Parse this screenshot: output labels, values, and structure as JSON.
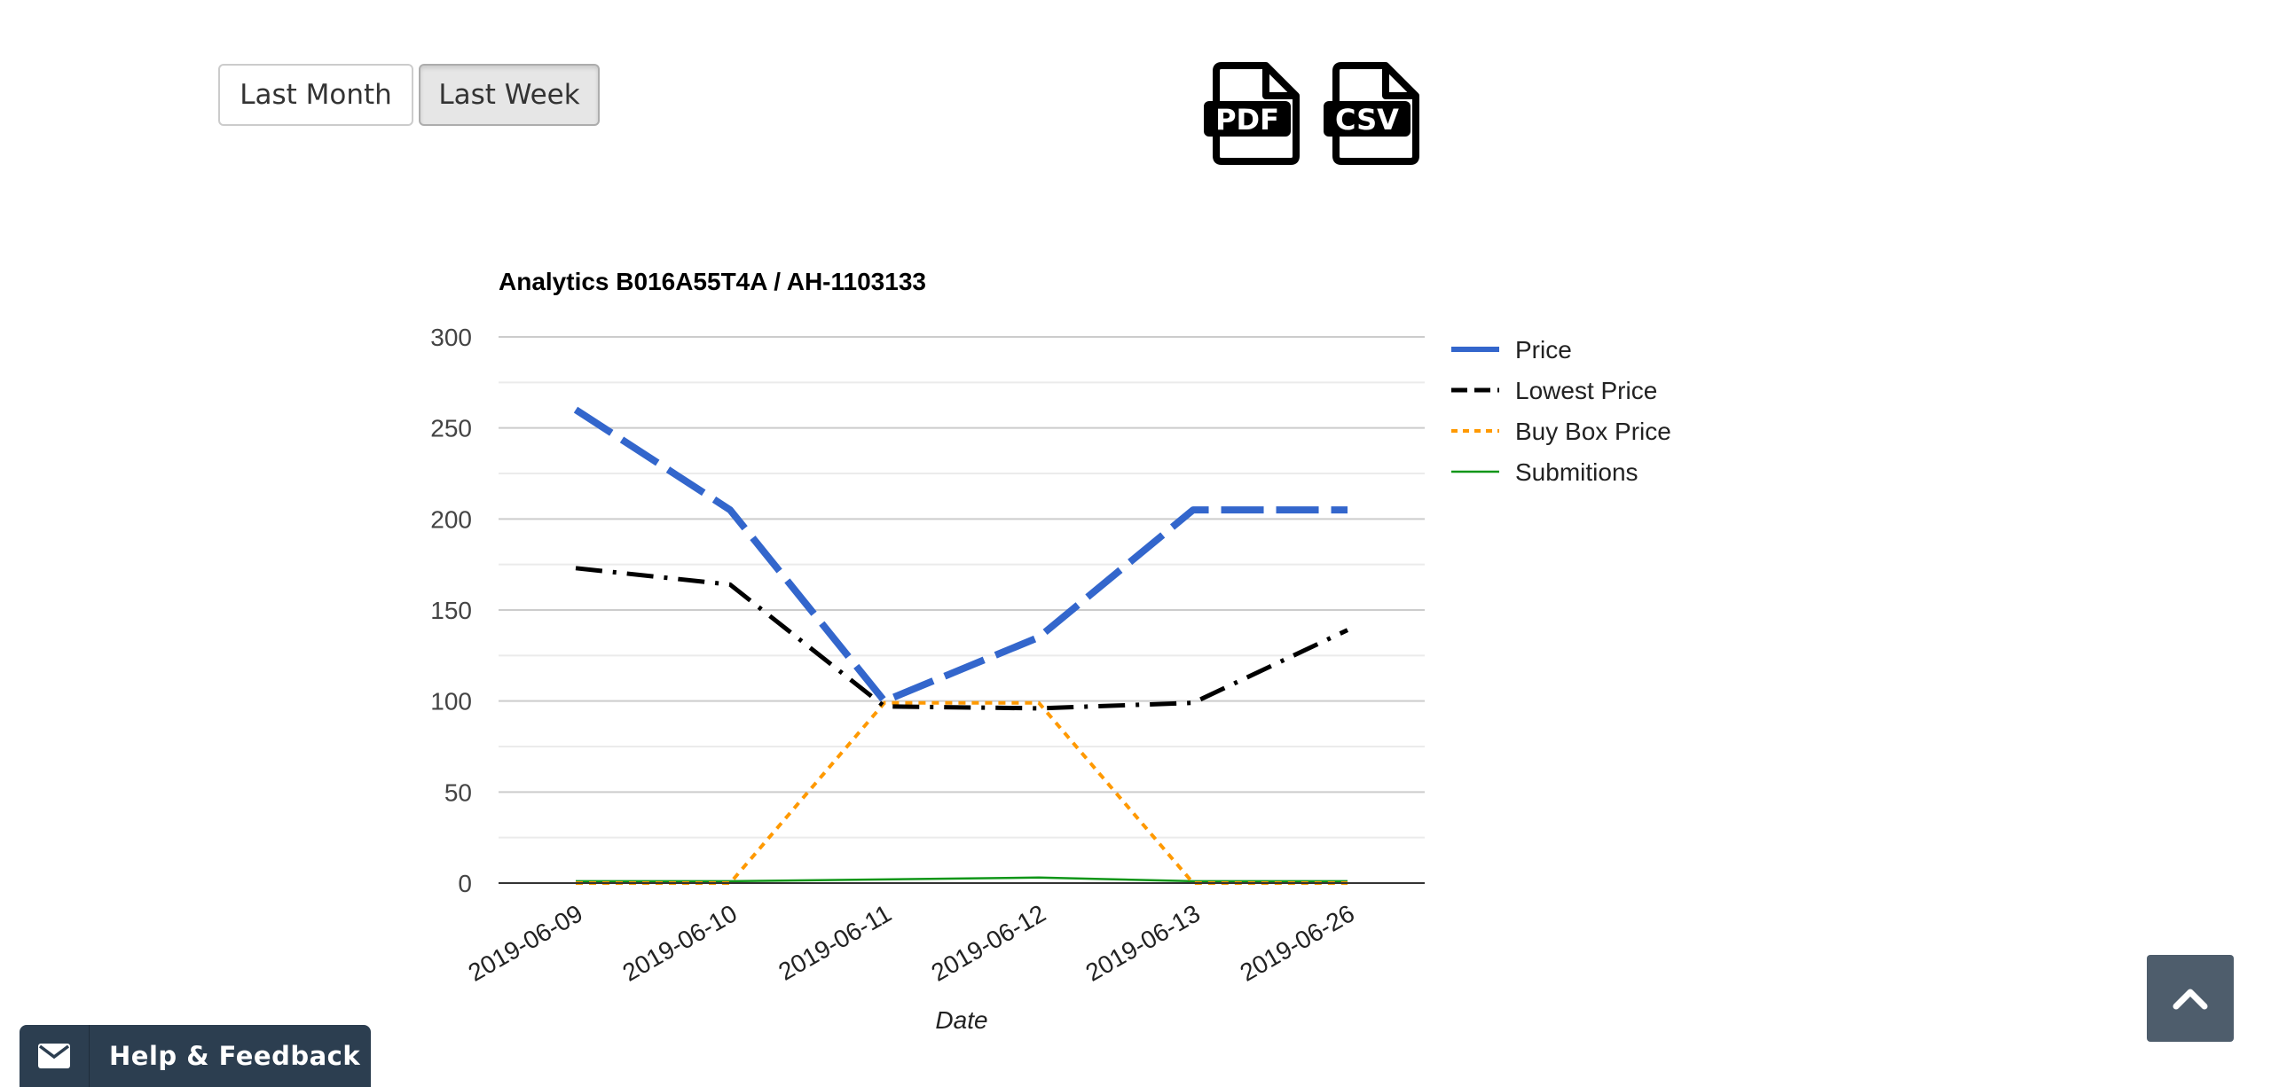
{
  "controls": {
    "last_month_label": "Last Month",
    "last_week_label": "Last Week",
    "selected": "Last Week"
  },
  "exports": {
    "pdf_label": "PDF",
    "csv_label": "CSV"
  },
  "help": {
    "label": "Help & Feedback"
  },
  "chart_data": {
    "type": "line",
    "title": "Analytics B016A55T4A / AH-1103133",
    "xlabel": "Date",
    "ylabel": "",
    "categories": [
      "2019-06-09",
      "2019-06-10",
      "2019-06-11",
      "2019-06-12",
      "2019-06-13",
      "2019-06-26"
    ],
    "ylim": [
      0,
      300
    ],
    "yticks": [
      0,
      50,
      100,
      150,
      200,
      250,
      300
    ],
    "grid": true,
    "legend_position": "right",
    "series": [
      {
        "name": "Price",
        "values": [
          260,
          205,
          100,
          135,
          205,
          205
        ],
        "color": "#3366cc",
        "style": "long-dash"
      },
      {
        "name": "Lowest Price",
        "values": [
          173,
          164,
          97,
          96,
          99,
          139
        ],
        "color": "#000000",
        "style": "dash-dot"
      },
      {
        "name": "Buy Box Price",
        "values": [
          0,
          0,
          99,
          99,
          0,
          0
        ],
        "color": "#ff9900",
        "style": "dotted"
      },
      {
        "name": "Submitions",
        "values": [
          1,
          1,
          2,
          3,
          1,
          1
        ],
        "color": "#109618",
        "style": "solid"
      }
    ]
  }
}
